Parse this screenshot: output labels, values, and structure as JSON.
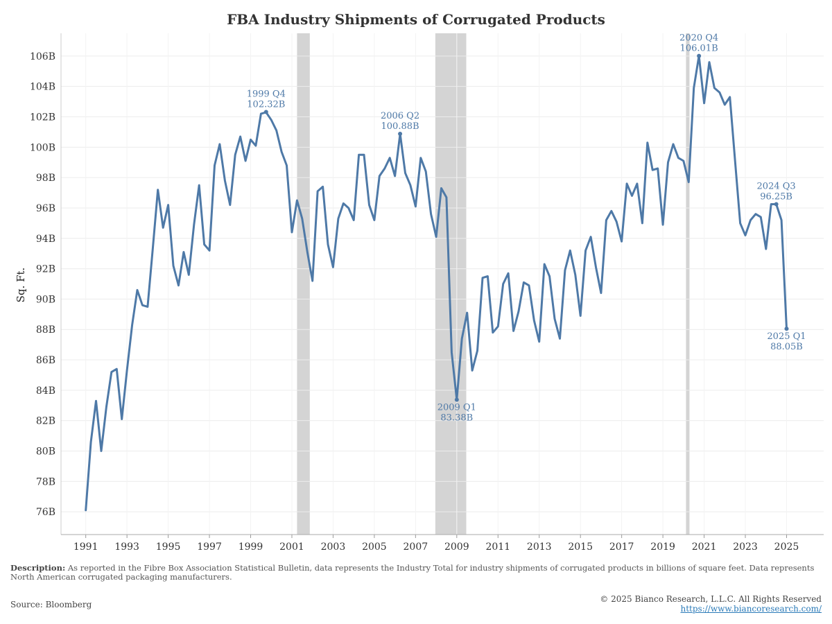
{
  "title": "FBA Industry Shipments of Corrugated Products",
  "colors": {
    "line": "#4e79a7",
    "recession": "#d4d4d4",
    "grid": "#ececec"
  },
  "chart_data": {
    "type": "line",
    "title": "FBA Industry Shipments of Corrugated Products",
    "xlabel": "",
    "ylabel": "Sq. Ft.",
    "ylim": [
      74.5,
      107.5
    ],
    "yticks": [
      76,
      78,
      80,
      82,
      84,
      86,
      88,
      90,
      92,
      94,
      96,
      98,
      100,
      102,
      104,
      106
    ],
    "ytick_labels": [
      "76B",
      "78B",
      "80B",
      "82B",
      "84B",
      "86B",
      "88B",
      "90B",
      "92B",
      "94B",
      "96B",
      "98B",
      "100B",
      "102B",
      "104B",
      "106B"
    ],
    "xlim": [
      1989.8,
      2026.8
    ],
    "xticks": [
      1991,
      1993,
      1995,
      1997,
      1999,
      2001,
      2003,
      2005,
      2007,
      2009,
      2011,
      2013,
      2015,
      2017,
      2019,
      2021,
      2023,
      2025
    ],
    "xtick_labels": [
      "1991",
      "1993",
      "1995",
      "1997",
      "1999",
      "2001",
      "2003",
      "2005",
      "2007",
      "2009",
      "2011",
      "2013",
      "2015",
      "2017",
      "2019",
      "2021",
      "2023",
      "2025"
    ],
    "grid": true,
    "recessions": [
      [
        2001.25,
        2001.87
      ],
      [
        2007.96,
        2009.46
      ],
      [
        2020.12,
        2020.29
      ]
    ],
    "series": [
      {
        "x": [
          1991.0,
          1991.25,
          1991.5,
          1991.75,
          1992.0,
          1992.25,
          1992.5,
          1992.75,
          1993.0,
          1993.25,
          1993.5,
          1993.75,
          1994.0,
          1994.25,
          1994.5,
          1994.75,
          1995.0,
          1995.25,
          1995.5,
          1995.75,
          1996.0,
          1996.25,
          1996.5,
          1996.75,
          1997.0,
          1997.25,
          1997.5,
          1997.75,
          1998.0,
          1998.25,
          1998.5,
          1998.75,
          1999.0,
          1999.25,
          1999.5,
          1999.75,
          2000.0,
          2000.25,
          2000.5,
          2000.75,
          2001.0,
          2001.25,
          2001.5,
          2001.75,
          2002.0,
          2002.25,
          2002.5,
          2002.75,
          2003.0,
          2003.25,
          2003.5,
          2003.75,
          2004.0,
          2004.25,
          2004.5,
          2004.75,
          2005.0,
          2005.25,
          2005.5,
          2005.75,
          2006.0,
          2006.25,
          2006.5,
          2006.75,
          2007.0,
          2007.25,
          2007.5,
          2007.75,
          2008.0,
          2008.25,
          2008.5,
          2008.75,
          2009.0,
          2009.25,
          2009.5,
          2009.75,
          2010.0,
          2010.25,
          2010.5,
          2010.75,
          2011.0,
          2011.25,
          2011.5,
          2011.75,
          2012.0,
          2012.25,
          2012.5,
          2012.75,
          2013.0,
          2013.25,
          2013.5,
          2013.75,
          2014.0,
          2014.25,
          2014.5,
          2014.75,
          2015.0,
          2015.25,
          2015.5,
          2015.75,
          2016.0,
          2016.25,
          2016.5,
          2016.75,
          2017.0,
          2017.25,
          2017.5,
          2017.75,
          2018.0,
          2018.25,
          2018.5,
          2018.75,
          2019.0,
          2019.25,
          2019.5,
          2019.75,
          2020.0,
          2020.25,
          2020.5,
          2020.75,
          2021.0,
          2021.25,
          2021.5,
          2021.75,
          2022.0,
          2022.25,
          2022.5,
          2022.75,
          2023.0,
          2023.25,
          2023.5,
          2023.75,
          2024.0,
          2024.25,
          2024.5,
          2024.75,
          2025.0
        ],
        "values": [
          76.1,
          80.6,
          83.3,
          80.0,
          82.9,
          85.2,
          85.4,
          82.1,
          85.3,
          88.3,
          90.6,
          89.6,
          89.5,
          93.3,
          97.2,
          94.7,
          96.2,
          92.2,
          90.9,
          93.1,
          91.6,
          94.9,
          97.5,
          93.6,
          93.2,
          98.8,
          100.2,
          97.8,
          96.2,
          99.5,
          100.7,
          99.1,
          100.5,
          100.1,
          102.2,
          102.3,
          101.8,
          101.1,
          99.7,
          98.8,
          94.4,
          96.5,
          95.3,
          93.1,
          91.2,
          97.1,
          97.4,
          93.6,
          92.1,
          95.3,
          96.3,
          96.0,
          95.2,
          99.5,
          99.5,
          96.2,
          95.2,
          98.1,
          98.6,
          99.3,
          98.1,
          100.88,
          98.3,
          97.5,
          96.1,
          99.3,
          98.4,
          95.6,
          94.1,
          97.3,
          96.7,
          86.5,
          83.38,
          87.4,
          89.1,
          85.3,
          86.6,
          91.4,
          91.5,
          87.8,
          88.2,
          91.0,
          91.7,
          87.9,
          89.2,
          91.1,
          90.9,
          88.6,
          87.2,
          92.3,
          91.5,
          88.7,
          87.4,
          91.9,
          93.2,
          91.6,
          88.9,
          93.2,
          94.1,
          92.1,
          90.4,
          95.2,
          95.8,
          95.1,
          93.8,
          97.6,
          96.8,
          97.6,
          95.0,
          100.3,
          98.5,
          98.6,
          94.9,
          99.0,
          100.2,
          99.3,
          99.1,
          97.7,
          103.9,
          106.01,
          102.9,
          105.6,
          103.9,
          103.6,
          102.8,
          103.3,
          99.1,
          95.0,
          94.2,
          95.2,
          95.6,
          95.4,
          93.3,
          96.25,
          96.25,
          95.2,
          88.05
        ]
      }
    ],
    "annotations": [
      {
        "x": 1999.75,
        "y": 102.32,
        "period": "1999 Q4",
        "value": "102.32B",
        "position": "above"
      },
      {
        "x": 2006.25,
        "y": 100.88,
        "period": "2006 Q2",
        "value": "100.88B",
        "position": "above"
      },
      {
        "x": 2009.0,
        "y": 83.38,
        "period": "2009 Q1",
        "value": "83.38B",
        "position": "below"
      },
      {
        "x": 2020.75,
        "y": 106.01,
        "period": "2020 Q4",
        "value": "106.01B",
        "position": "above"
      },
      {
        "x": 2024.5,
        "y": 96.25,
        "period": "2024 Q3",
        "value": "96.25B",
        "position": "above"
      },
      {
        "x": 2025.0,
        "y": 88.05,
        "period": "2025 Q1",
        "value": "88.05B",
        "position": "below"
      }
    ]
  },
  "footer": {
    "description_label": "Description:",
    "description_text": " As reported in the Fibre Box Association Statistical Bulletin, data represents the Industry Total for industry shipments of corrugated products in billions of square feet. Data represents North American corrugated packaging manufacturers.",
    "source": "Source: Bloomberg",
    "copyright": "© 2025 Bianco Research, L.L.C. All Rights Reserved",
    "website": "https://www.biancoresearch.com/"
  }
}
